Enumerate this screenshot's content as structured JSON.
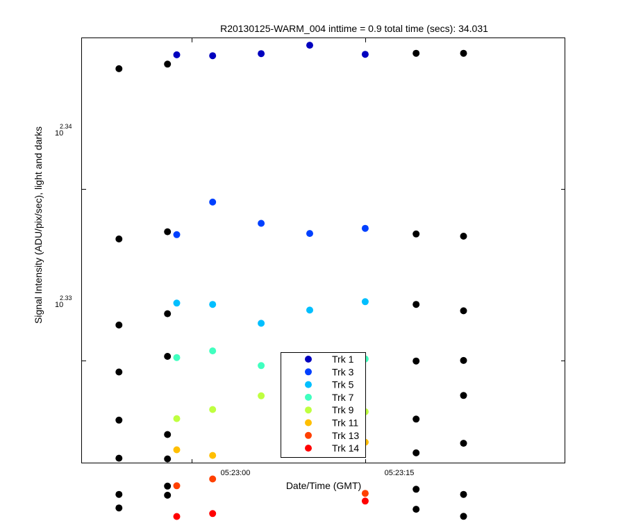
{
  "chart_data": {
    "type": "scatter",
    "title": "R20130125-WARM_004 inttime = 0.9 total time (secs): 34.031",
    "xlabel": "Date/Time (GMT)",
    "ylabel": "Signal Intensity (ADU/pix/sec), light and darks",
    "x_ticks": [
      "05:23:00",
      "05:23:15"
    ],
    "y_ticks": [
      {
        "base": "10",
        "exp": "2.33"
      },
      {
        "base": "10",
        "exp": "2.34"
      }
    ],
    "y_scale": "log10",
    "xlim": [
      "05:22:50.5",
      "05:23:32.3"
    ],
    "ylim_log10": [
      2.324,
      2.3488
    ],
    "legend_position": "bottom-center",
    "series": [
      {
        "name": "Trk 1",
        "color": "#0000bf",
        "x": [
          "05:22:58.7",
          "05:23:01.8",
          "05:23:06.0",
          "05:23:10.2",
          "05:23:15.0"
        ],
        "y_log10": [
          2.34783,
          2.34778,
          2.3479,
          2.34839,
          2.34786
        ]
      },
      {
        "name": "Trk 3",
        "color": "#0040ff",
        "x": [
          "05:22:58.7",
          "05:23:01.8",
          "05:23:06.0",
          "05:23:10.2",
          "05:23:15.0"
        ],
        "y_log10": [
          2.33734,
          2.33924,
          2.338,
          2.33741,
          2.33771
        ]
      },
      {
        "name": "Trk 5",
        "color": "#00bfff",
        "x": [
          "05:22:58.7",
          "05:23:01.8",
          "05:23:06.0",
          "05:23:10.2",
          "05:23:15.0"
        ],
        "y_log10": [
          2.33335,
          2.33327,
          2.33217,
          2.33294,
          2.33343
        ]
      },
      {
        "name": "Trk 7",
        "color": "#40ffbf",
        "x": [
          "05:22:58.7",
          "05:23:01.8",
          "05:23:06.0",
          "05:23:10.2",
          "05:23:15.0"
        ],
        "y_log10": [
          2.33017,
          2.33056,
          2.3297,
          2.33009,
          2.33009
        ]
      },
      {
        "name": "Trk 9",
        "color": "#bfff40",
        "x": [
          "05:22:58.7",
          "05:23:01.8",
          "05:23:06.0",
          "05:23:10.2",
          "05:23:15.0"
        ],
        "y_log10": [
          2.32661,
          2.32714,
          2.32794,
          2.32749,
          2.32701
        ]
      },
      {
        "name": "Trk 11",
        "color": "#ffbf00",
        "x": [
          "05:22:58.7",
          "05:23:01.8",
          "05:23:06.0",
          "05:23:10.2",
          "05:23:15.0"
        ],
        "y_log10": [
          2.32479,
          2.32446,
          null,
          null,
          2.32523
        ]
      },
      {
        "name": "Trk 13",
        "color": "#ff4000",
        "x": [
          "05:22:58.7",
          "05:23:01.8",
          "05:23:06.0",
          "05:23:10.2",
          "05:23:15.0"
        ],
        "y_log10": [
          2.32269,
          2.32309,
          null,
          null,
          2.32225
        ]
      },
      {
        "name": "Trk 14",
        "color": "#ff0000",
        "x": [
          "05:22:58.7",
          "05:23:01.8",
          "05:23:06.0",
          "05:23:10.2",
          "05:23:15.0"
        ],
        "y_log10": [
          2.3209,
          2.32107,
          null,
          null,
          2.3218
        ]
      }
    ],
    "darks": {
      "color": "#000000",
      "x": [
        "05:22:53.7",
        "05:22:57.9",
        "05:23:19.4",
        "05:23:23.5"
      ],
      "y_log10": [
        [
          2.34702,
          2.33709,
          2.33207,
          2.32933,
          2.32652,
          2.3243,
          2.32219,
          2.3214
        ],
        [
          2.34729,
          2.33751,
          2.33273,
          2.33024,
          2.32568,
          2.32426,
          2.32267,
          2.32214
        ],
        [
          2.34792,
          2.33738,
          2.33327,
          2.32997,
          2.32658,
          2.32461,
          2.32249,
          2.32132
        ],
        [
          2.34792,
          2.33725,
          2.3329,
          2.33,
          2.32796,
          2.32517,
          2.32219,
          2.32091
        ]
      ]
    }
  }
}
